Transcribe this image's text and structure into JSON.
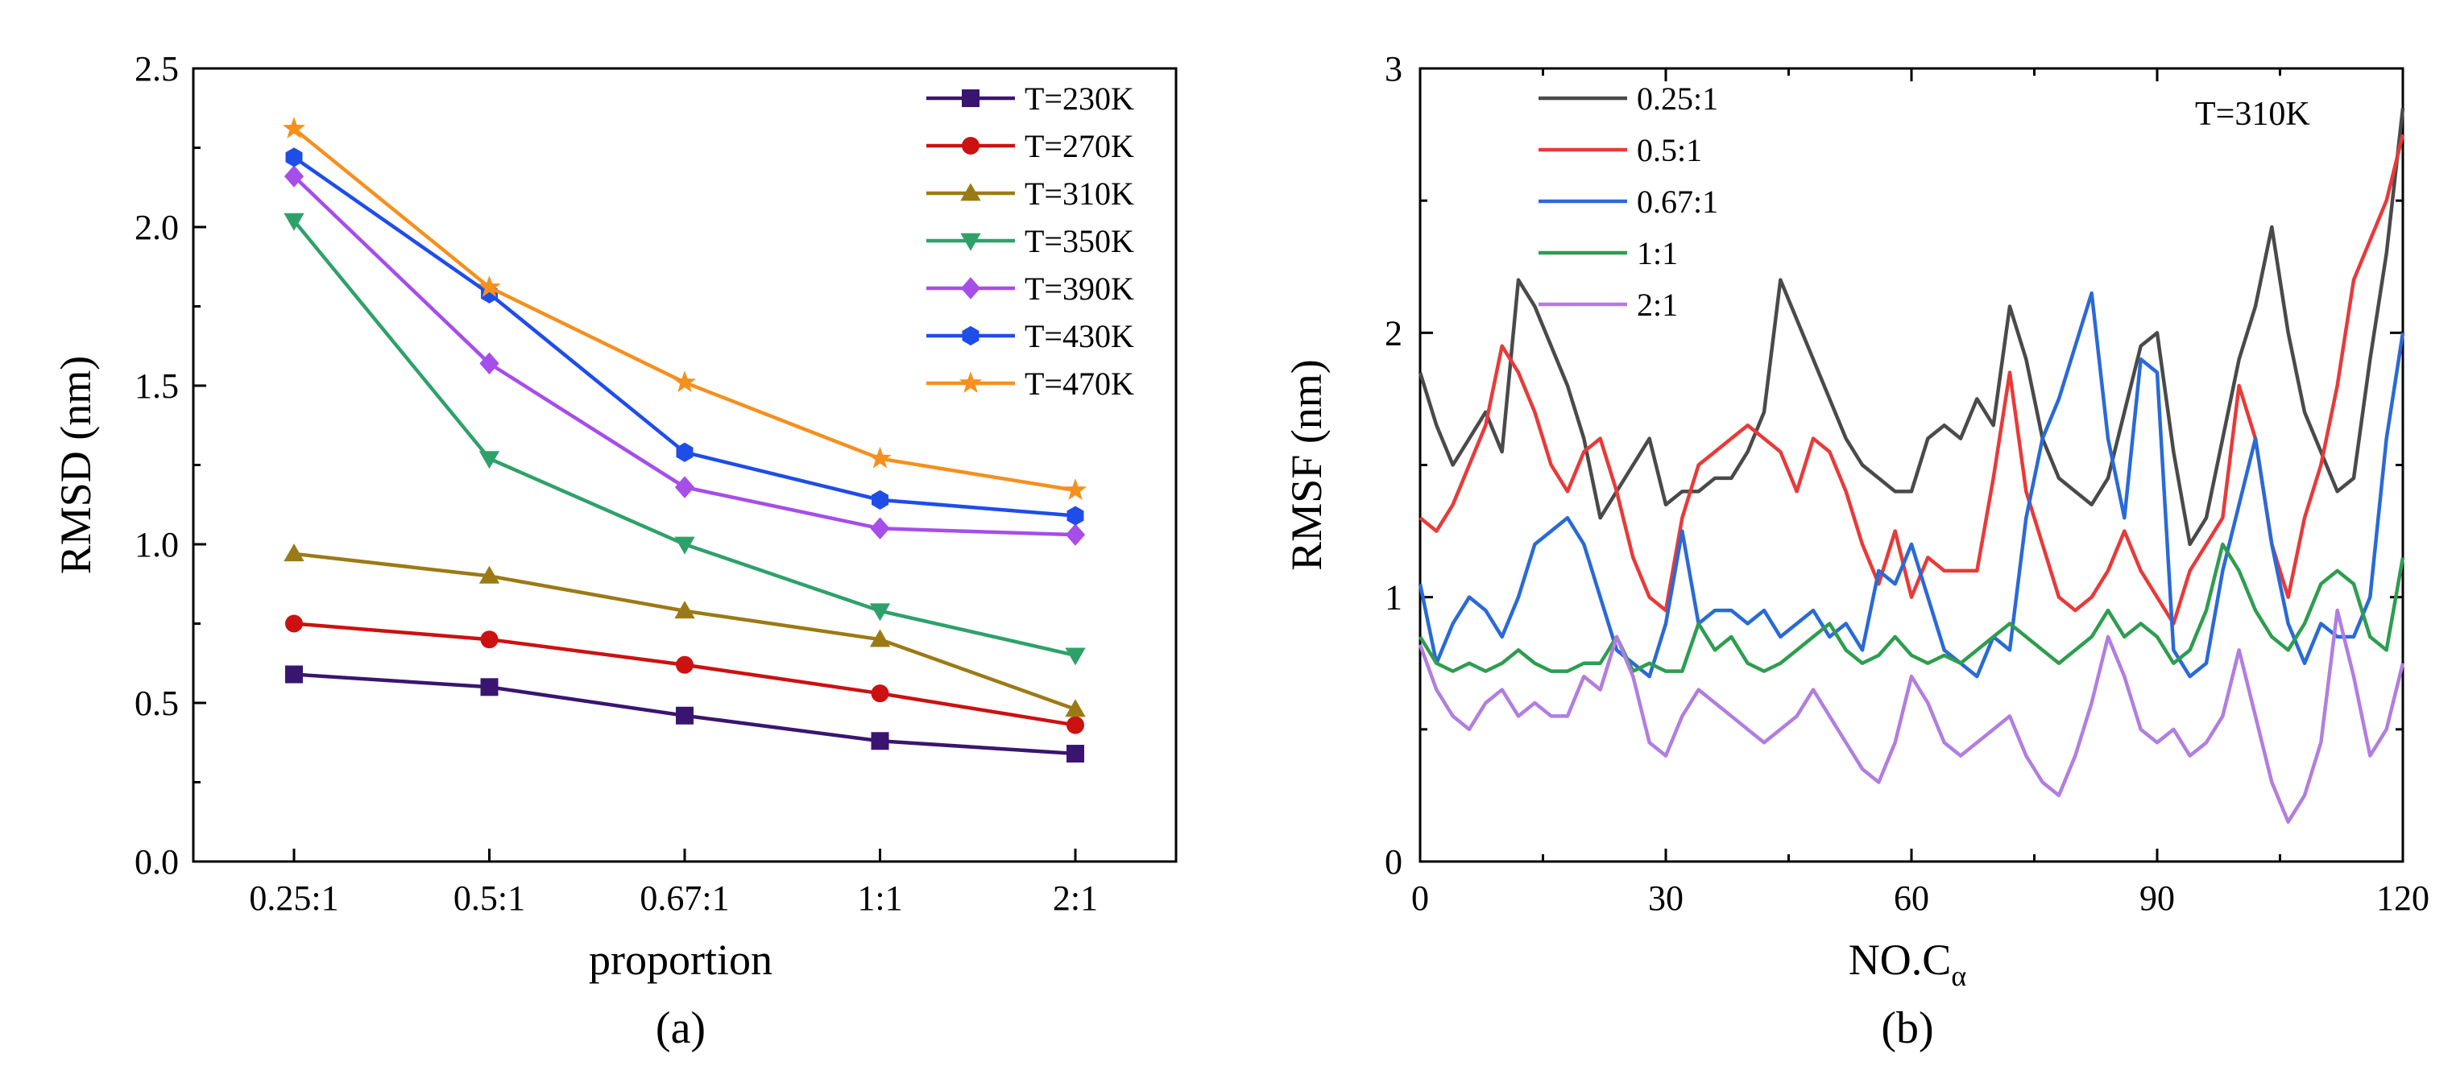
{
  "chart_data": [
    {
      "type": "line",
      "panel": "(a)",
      "xlabel": "proportion",
      "ylabel": "RMSD (nm)",
      "categories": [
        "0.25:1",
        "0.5:1",
        "0.67:1",
        "1:1",
        "2:1"
      ],
      "ylim": [
        0.0,
        2.5
      ],
      "yticks": [
        "0.0",
        "0.5",
        "1.0",
        "1.5",
        "2.0",
        "2.5"
      ],
      "legend_position": "top-right",
      "series": [
        {
          "name": "T=230K",
          "color": "#3a1570",
          "marker": "square",
          "values": [
            0.59,
            0.55,
            0.46,
            0.38,
            0.34
          ]
        },
        {
          "name": "T=270K",
          "color": "#cc1111",
          "marker": "circle",
          "values": [
            0.75,
            0.7,
            0.62,
            0.53,
            0.43
          ]
        },
        {
          "name": "T=310K",
          "color": "#9b7a16",
          "marker": "triangle-up",
          "values": [
            0.97,
            0.9,
            0.79,
            0.7,
            0.48
          ]
        },
        {
          "name": "T=350K",
          "color": "#2ea16a",
          "marker": "triangle-down",
          "values": [
            2.02,
            1.27,
            1.0,
            0.79,
            0.65
          ]
        },
        {
          "name": "T=390K",
          "color": "#a64dea",
          "marker": "diamond",
          "values": [
            2.16,
            1.57,
            1.18,
            1.05,
            1.03
          ]
        },
        {
          "name": "T=430K",
          "color": "#1f4de8",
          "marker": "hexagon",
          "values": [
            2.22,
            1.79,
            1.29,
            1.14,
            1.09
          ]
        },
        {
          "name": "T=470K",
          "color": "#f5901e",
          "marker": "star",
          "values": [
            2.31,
            1.81,
            1.51,
            1.27,
            1.17
          ]
        }
      ]
    },
    {
      "type": "line",
      "panel": "(b)",
      "xlabel": "NO.C",
      "xlabel_sub": "α",
      "ylabel": "RMSF (nm)",
      "annotation": "T=310K",
      "xlim": [
        0,
        120
      ],
      "ylim": [
        0,
        3
      ],
      "xticks": [
        "0",
        "30",
        "60",
        "90",
        "120"
      ],
      "yticks": [
        "0",
        "1",
        "2",
        "3"
      ],
      "legend_position": "top-left",
      "x": [
        0,
        2,
        4,
        6,
        8,
        10,
        12,
        14,
        16,
        18,
        20,
        22,
        24,
        26,
        28,
        30,
        32,
        34,
        36,
        38,
        40,
        42,
        44,
        46,
        48,
        50,
        52,
        54,
        56,
        58,
        60,
        62,
        64,
        66,
        68,
        70,
        72,
        74,
        76,
        78,
        80,
        82,
        84,
        86,
        88,
        90,
        92,
        94,
        96,
        98,
        100,
        102,
        104,
        106,
        108,
        110,
        112,
        114,
        116,
        118,
        120
      ],
      "series": [
        {
          "name": "0.25:1",
          "color": "#4a4a4a",
          "values": [
            1.85,
            1.65,
            1.5,
            1.6,
            1.7,
            1.55,
            2.2,
            2.1,
            1.95,
            1.8,
            1.6,
            1.3,
            1.4,
            1.5,
            1.6,
            1.35,
            1.4,
            1.4,
            1.45,
            1.45,
            1.55,
            1.7,
            2.2,
            2.05,
            1.9,
            1.75,
            1.6,
            1.5,
            1.45,
            1.4,
            1.4,
            1.6,
            1.65,
            1.6,
            1.75,
            1.65,
            2.1,
            1.9,
            1.6,
            1.45,
            1.4,
            1.35,
            1.45,
            1.7,
            1.95,
            2.0,
            1.55,
            1.2,
            1.3,
            1.6,
            1.9,
            2.1,
            2.4,
            2.0,
            1.7,
            1.55,
            1.4,
            1.45,
            1.9,
            2.3,
            2.85
          ]
        },
        {
          "name": "0.5:1",
          "color": "#e83a3a",
          "values": [
            1.3,
            1.25,
            1.35,
            1.5,
            1.65,
            1.95,
            1.85,
            1.7,
            1.5,
            1.4,
            1.55,
            1.6,
            1.4,
            1.15,
            1.0,
            0.95,
            1.3,
            1.5,
            1.55,
            1.6,
            1.65,
            1.6,
            1.55,
            1.4,
            1.6,
            1.55,
            1.4,
            1.2,
            1.05,
            1.25,
            1.0,
            1.15,
            1.1,
            1.1,
            1.1,
            1.45,
            1.85,
            1.4,
            1.2,
            1.0,
            0.95,
            1.0,
            1.1,
            1.25,
            1.1,
            1.0,
            0.9,
            1.1,
            1.2,
            1.3,
            1.8,
            1.6,
            1.2,
            1.0,
            1.3,
            1.5,
            1.8,
            2.2,
            2.35,
            2.5,
            2.75
          ]
        },
        {
          "name": "0.67:1",
          "color": "#2a6ad6",
          "values": [
            1.05,
            0.75,
            0.9,
            1.0,
            0.95,
            0.85,
            1.0,
            1.2,
            1.25,
            1.3,
            1.2,
            1.0,
            0.8,
            0.75,
            0.7,
            0.9,
            1.25,
            0.9,
            0.95,
            0.95,
            0.9,
            0.95,
            0.85,
            0.9,
            0.95,
            0.85,
            0.9,
            0.8,
            1.1,
            1.05,
            1.2,
            1.0,
            0.8,
            0.75,
            0.7,
            0.85,
            0.8,
            1.3,
            1.6,
            1.75,
            1.95,
            2.15,
            1.6,
            1.3,
            1.9,
            1.85,
            0.8,
            0.7,
            0.75,
            1.1,
            1.35,
            1.6,
            1.2,
            0.9,
            0.75,
            0.9,
            0.85,
            0.85,
            1.0,
            1.6,
            2.0
          ]
        },
        {
          "name": "1:1",
          "color": "#2e9d50",
          "values": [
            0.85,
            0.75,
            0.72,
            0.75,
            0.72,
            0.75,
            0.8,
            0.75,
            0.72,
            0.72,
            0.75,
            0.75,
            0.85,
            0.72,
            0.75,
            0.72,
            0.72,
            0.9,
            0.8,
            0.85,
            0.75,
            0.72,
            0.75,
            0.8,
            0.85,
            0.9,
            0.8,
            0.75,
            0.78,
            0.85,
            0.78,
            0.75,
            0.78,
            0.75,
            0.8,
            0.85,
            0.9,
            0.85,
            0.8,
            0.75,
            0.8,
            0.85,
            0.95,
            0.85,
            0.9,
            0.85,
            0.75,
            0.8,
            0.95,
            1.2,
            1.1,
            0.95,
            0.85,
            0.8,
            0.9,
            1.05,
            1.1,
            1.05,
            0.85,
            0.8,
            1.15
          ]
        },
        {
          "name": "2:1",
          "color": "#b17ee0",
          "values": [
            0.82,
            0.65,
            0.55,
            0.5,
            0.6,
            0.65,
            0.55,
            0.6,
            0.55,
            0.55,
            0.7,
            0.65,
            0.85,
            0.7,
            0.45,
            0.4,
            0.55,
            0.65,
            0.6,
            0.55,
            0.5,
            0.45,
            0.5,
            0.55,
            0.65,
            0.55,
            0.45,
            0.35,
            0.3,
            0.45,
            0.7,
            0.6,
            0.45,
            0.4,
            0.45,
            0.5,
            0.55,
            0.4,
            0.3,
            0.25,
            0.4,
            0.6,
            0.85,
            0.7,
            0.5,
            0.45,
            0.5,
            0.4,
            0.45,
            0.55,
            0.8,
            0.55,
            0.3,
            0.15,
            0.25,
            0.45,
            0.95,
            0.7,
            0.4,
            0.5,
            0.75
          ]
        }
      ]
    }
  ]
}
